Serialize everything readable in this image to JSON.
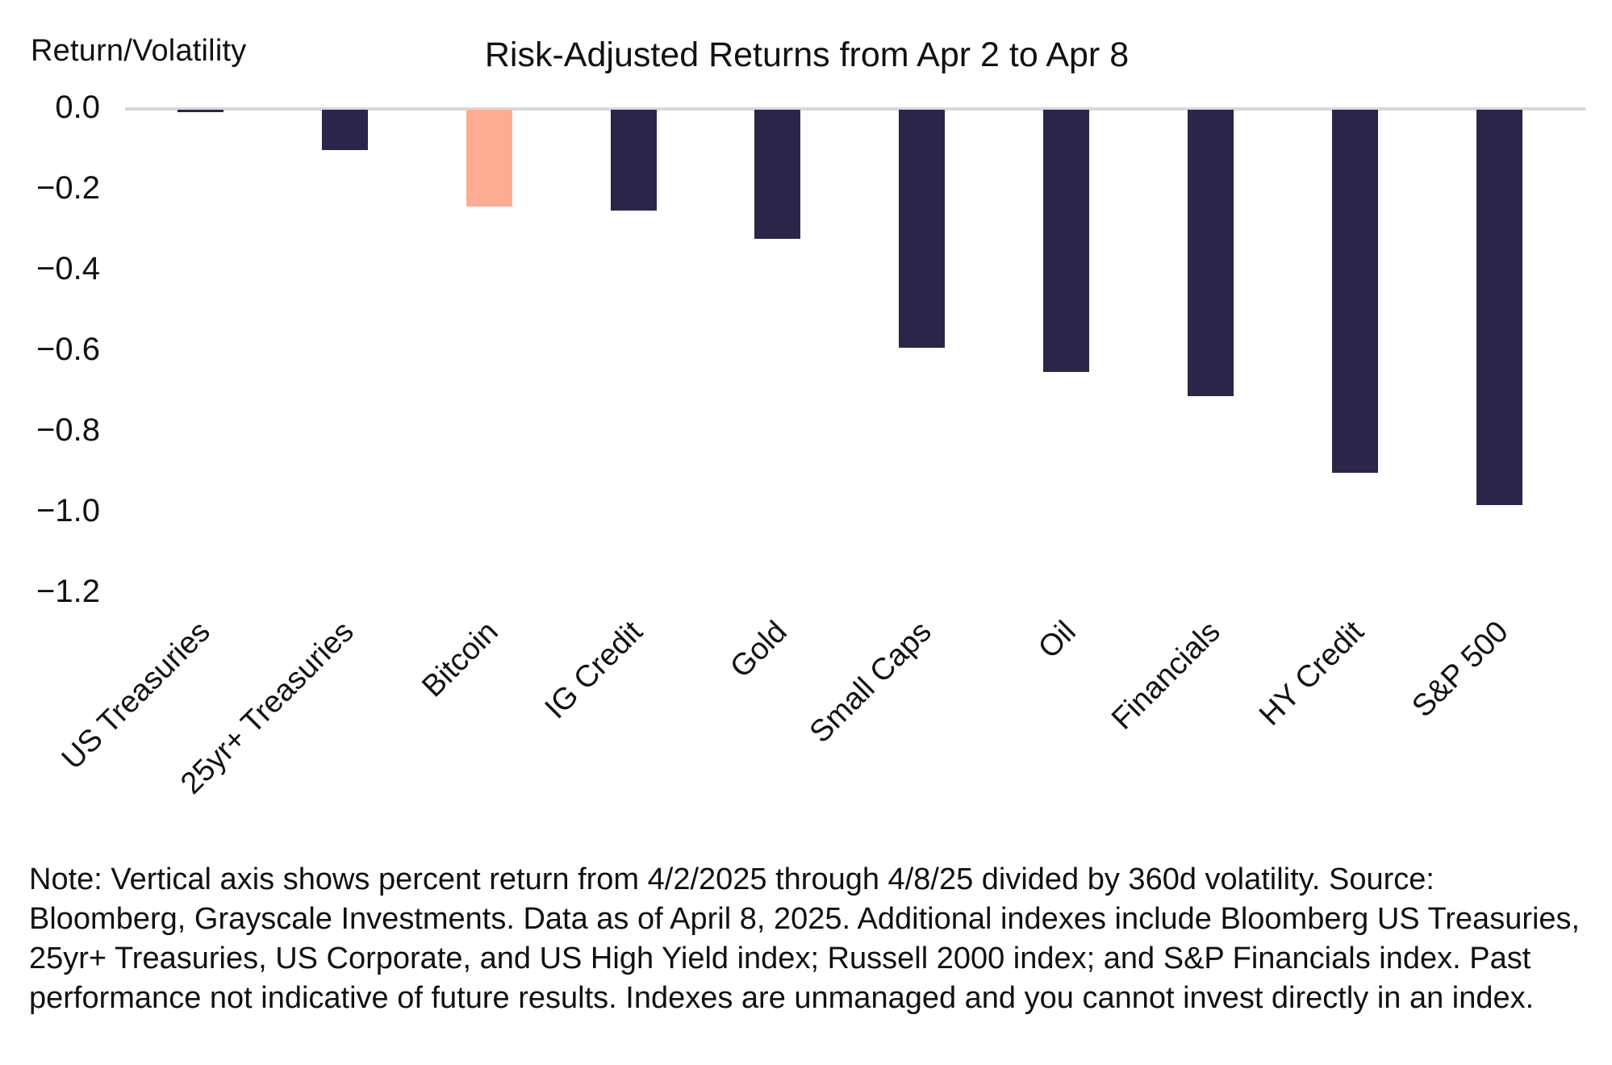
{
  "chart_data": {
    "type": "bar",
    "title": "Risk-Adjusted Returns from Apr 2 to Apr 8",
    "ylabel": "Return/Volatility",
    "categories": [
      "US Treasuries",
      "25yr+ Treasuries",
      "Bitcoin",
      "IG Credit",
      "Gold",
      "Small Caps",
      "Oil",
      "Financials",
      "HY Credit",
      "S&P 500"
    ],
    "values": [
      -0.005,
      -0.1,
      -0.24,
      -0.25,
      -0.32,
      -0.59,
      -0.65,
      -0.71,
      -0.9,
      -0.98
    ],
    "highlight_category": "Bitcoin",
    "yticks": [
      0.0,
      -0.2,
      -0.4,
      -0.6,
      -0.8,
      -1.0,
      -1.2
    ],
    "ylim": [
      -1.3,
      0.05
    ],
    "grid": false,
    "legend": false,
    "colors": {
      "default_bar": "#2D2449",
      "highlight_bar": "#FDAC93",
      "axis_line": "#D8D8D8",
      "text": "#111111"
    }
  },
  "note": "Note: Vertical axis shows percent return from 4/2/2025 through 4/8/25 divided by 360d volatility. Source: Bloomberg, Grayscale Investments. Data as of April 8, 2025. Additional indexes include Bloomberg US Treasuries, 25yr+ Treasuries, US Corporate, and US High Yield index; Russell 2000 index; and S&P Financials index. Past performance not indicative of future results. Indexes are unmanaged and you cannot invest directly in an index."
}
